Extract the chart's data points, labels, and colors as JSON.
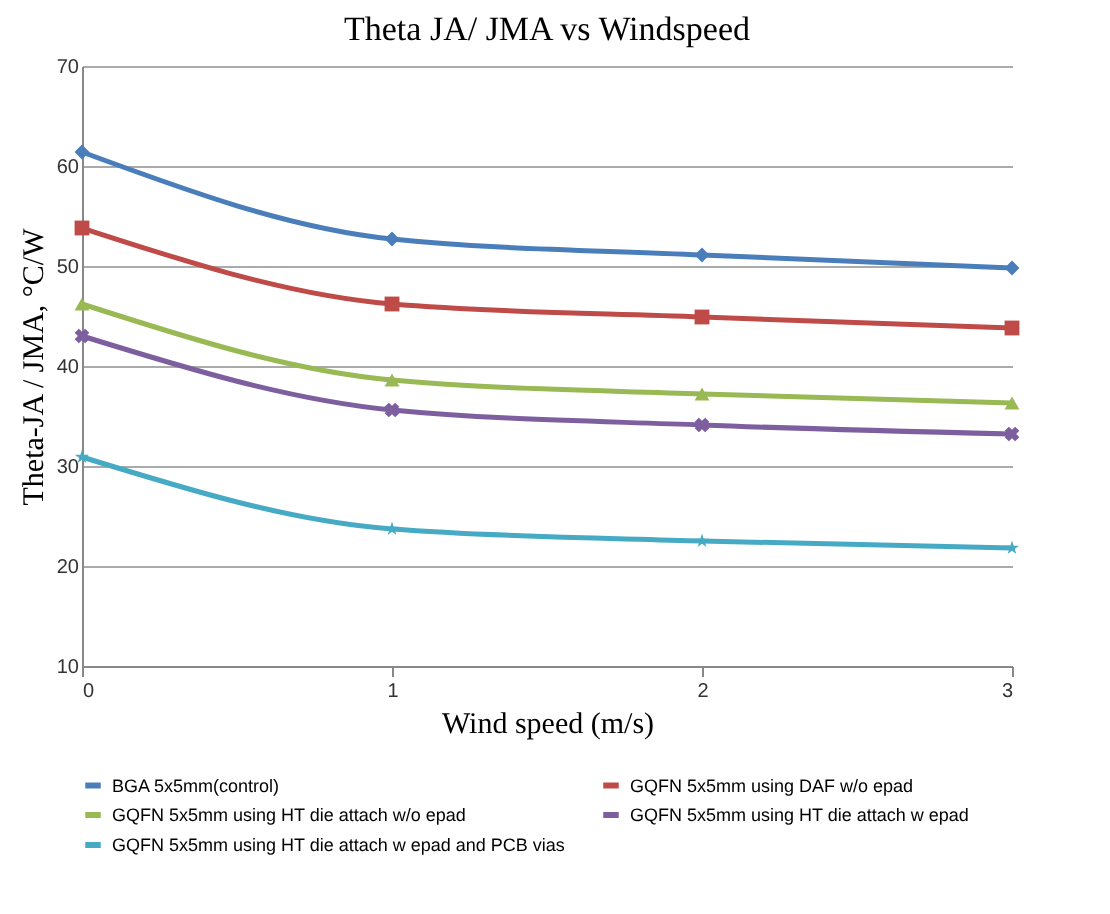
{
  "chart_data": {
    "type": "line",
    "title": "Theta JA/ JMA vs Windspeed",
    "xlabel": "Wind speed (m/s)",
    "ylabel": "Theta-JA / JMA,   °C/W",
    "x": [
      0,
      1,
      2,
      3
    ],
    "xlim": [
      0,
      3
    ],
    "xticks": [
      0,
      1,
      2,
      3
    ],
    "ylim": [
      10,
      70
    ],
    "yticks": [
      10,
      20,
      30,
      40,
      50,
      60,
      70
    ],
    "grid": "y",
    "legend": "bottom",
    "line_style": "solid",
    "series": [
      {
        "name": "BGA 5x5mm(control)",
        "color": "#4a7ebb",
        "marker": "diamond",
        "values": [
          61.4,
          52.7,
          51.1,
          49.8
        ]
      },
      {
        "name": "GQFN 5x5mm using DAF w/o epad",
        "color": "#be4b48",
        "marker": "square",
        "values": [
          53.8,
          46.2,
          44.9,
          43.8
        ]
      },
      {
        "name": "GQFN 5x5mm using HT die attach w/o epad",
        "color": "#98b954",
        "marker": "triangle",
        "values": [
          46.2,
          38.6,
          37.2,
          36.3
        ]
      },
      {
        "name": "GQFN 5x5mm using HT die attach w epad",
        "color": "#7d5fa0",
        "marker": "cross",
        "values": [
          43.0,
          35.6,
          34.1,
          33.2
        ]
      },
      {
        "name": "GQFN 5x5mm using HT die attach w epad and PCB vias",
        "color": "#46aac5",
        "marker": "star",
        "values": [
          30.9,
          23.7,
          22.5,
          21.8
        ]
      }
    ]
  }
}
